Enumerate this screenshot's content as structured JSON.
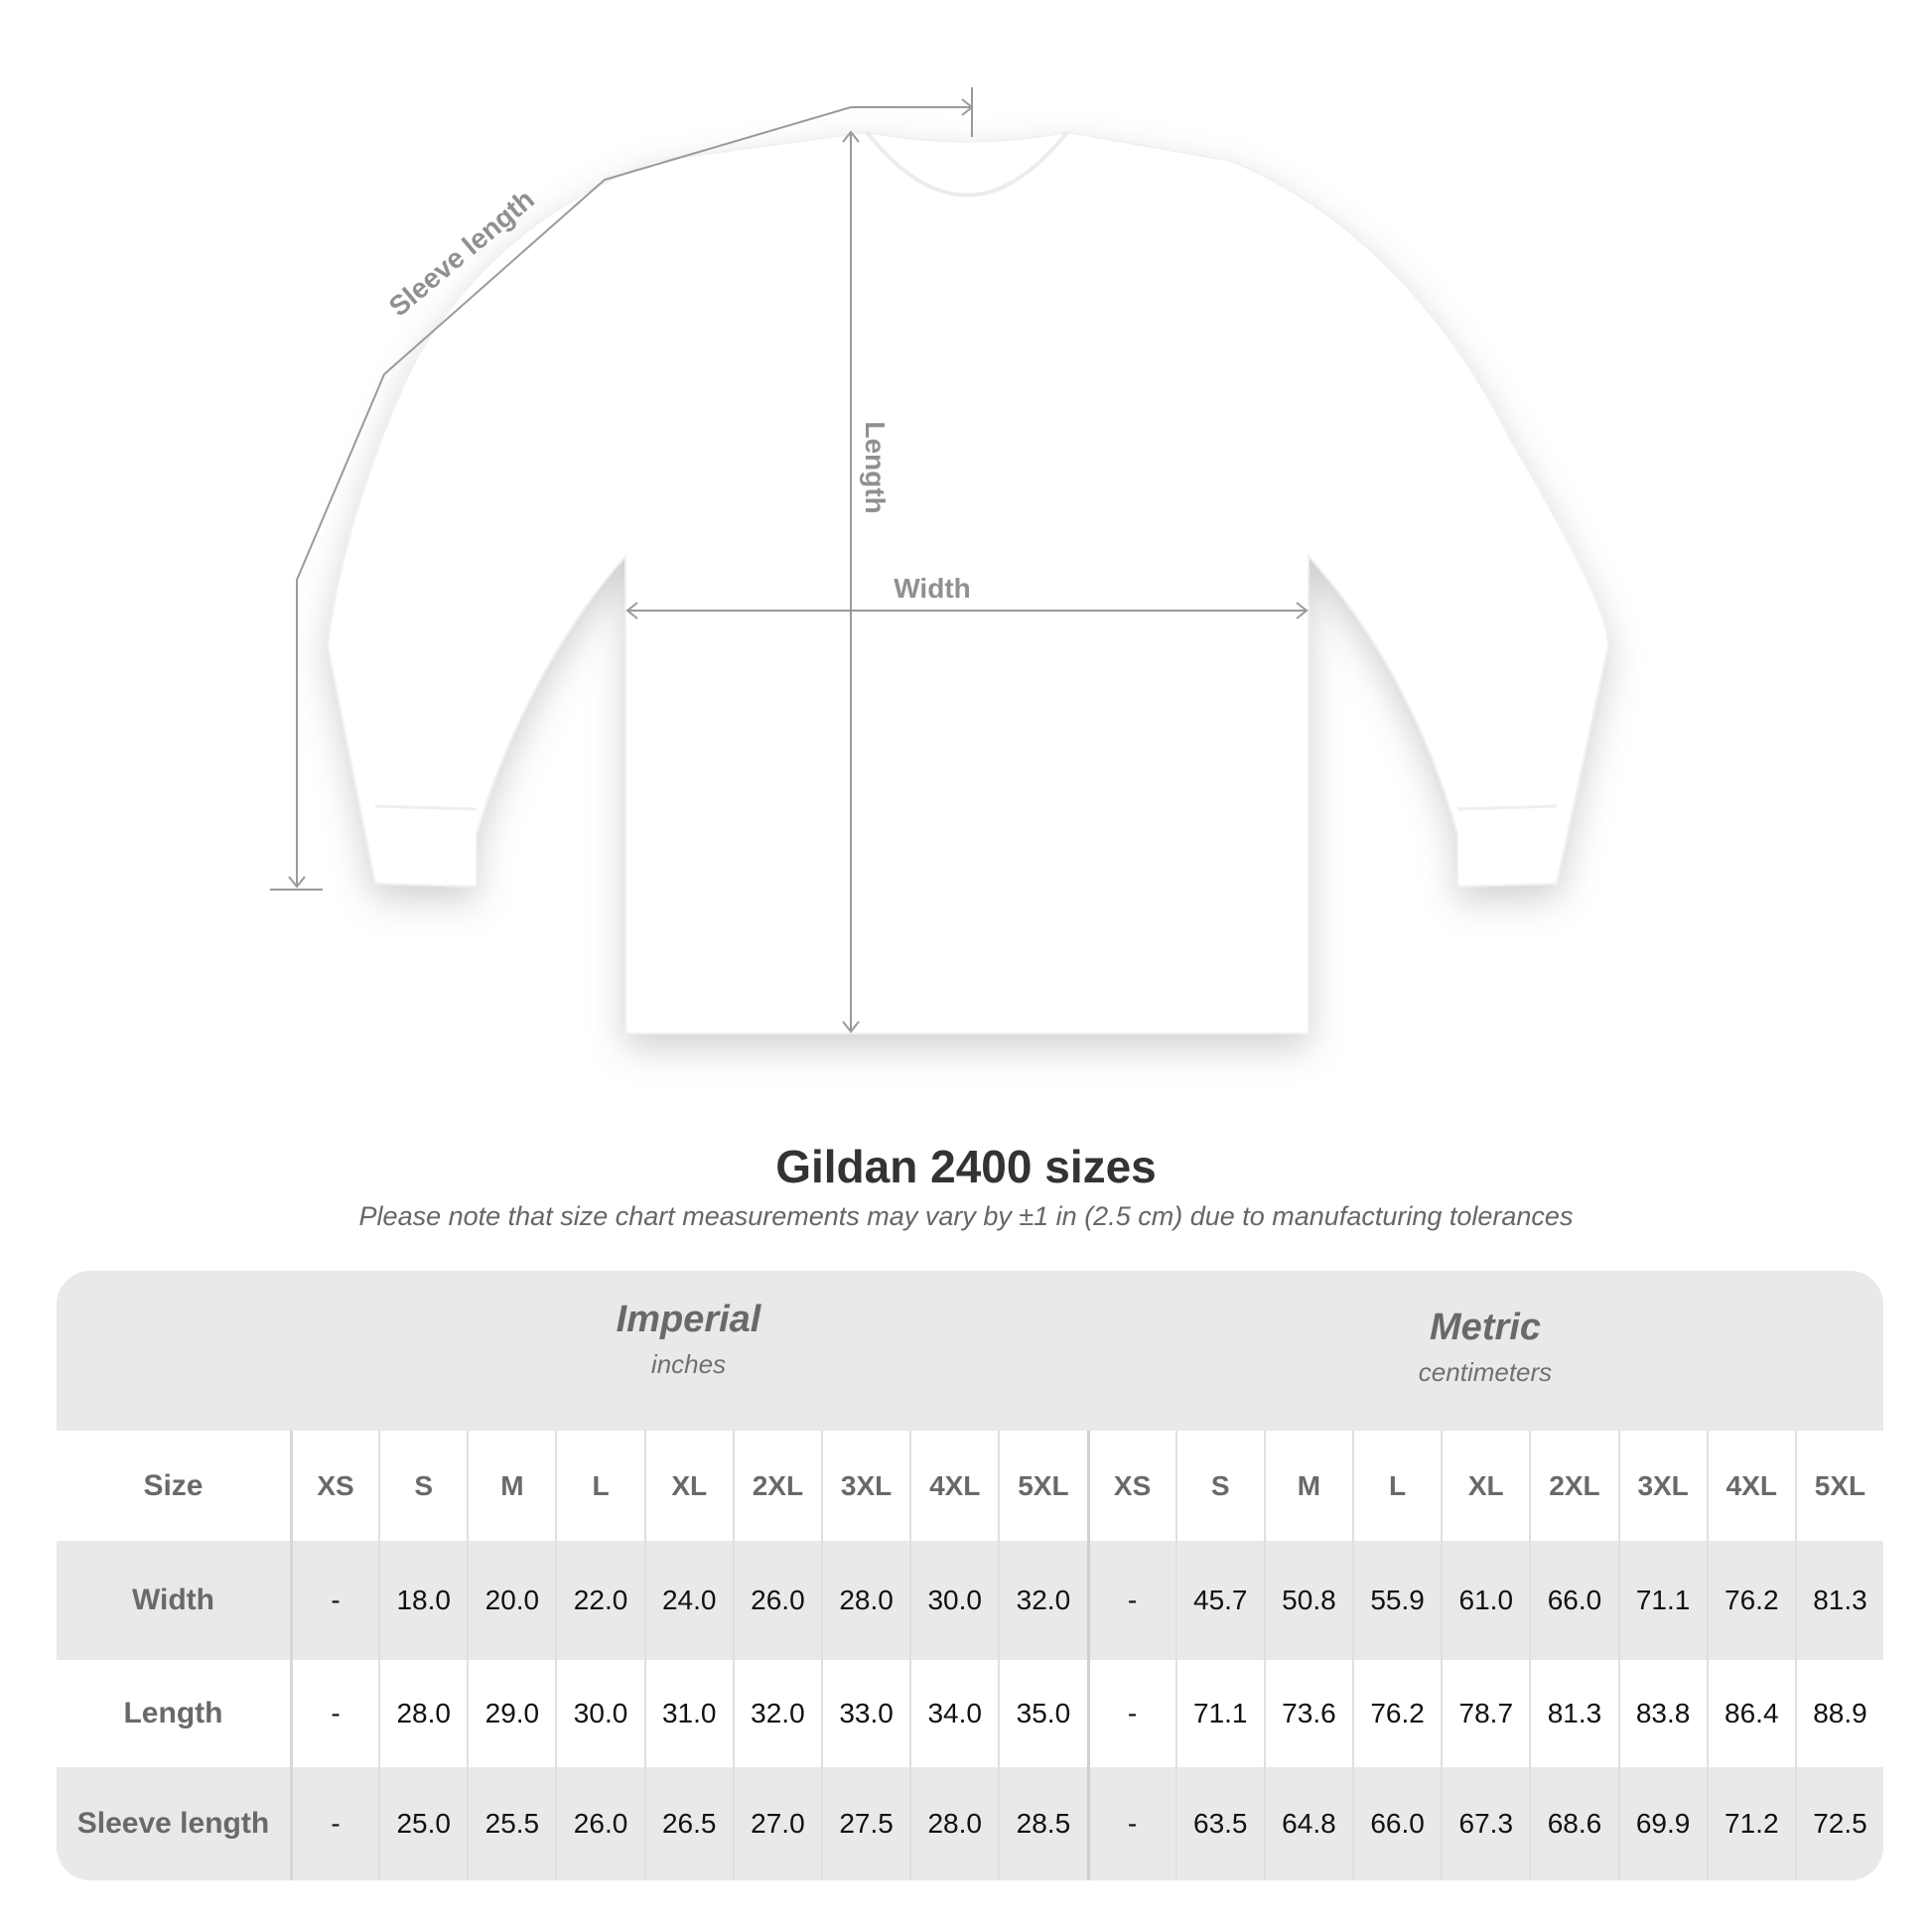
{
  "diagram": {
    "labels": {
      "sleeve": "Sleeve length",
      "length": "Length",
      "width": "Width"
    },
    "shirt_color": "#ffffff",
    "line_color": "#9a9a9a"
  },
  "title": "Gildan 2400 sizes",
  "note": "Please note that size chart measurements may vary by ±1 in (2.5 cm) due to manufacturing tolerances",
  "table": {
    "imperial": {
      "name": "Imperial",
      "unit": "inches"
    },
    "metric": {
      "name": "Metric",
      "unit": "centimeters"
    },
    "size_label": "Size",
    "sizes": [
      "XS",
      "S",
      "M",
      "L",
      "XL",
      "2XL",
      "3XL",
      "4XL",
      "5XL"
    ],
    "rows": [
      {
        "label": "Width",
        "imperial": [
          "-",
          "18.0",
          "20.0",
          "22.0",
          "24.0",
          "26.0",
          "28.0",
          "30.0",
          "32.0"
        ],
        "metric": [
          "-",
          "45.7",
          "50.8",
          "55.9",
          "61.0",
          "66.0",
          "71.1",
          "76.2",
          "81.3"
        ]
      },
      {
        "label": "Length",
        "imperial": [
          "-",
          "28.0",
          "29.0",
          "30.0",
          "31.0",
          "32.0",
          "33.0",
          "34.0",
          "35.0"
        ],
        "metric": [
          "-",
          "71.1",
          "73.6",
          "76.2",
          "78.7",
          "81.3",
          "83.8",
          "86.4",
          "88.9"
        ]
      },
      {
        "label": "Sleeve length",
        "imperial": [
          "-",
          "25.0",
          "25.5",
          "26.0",
          "26.5",
          "27.0",
          "27.5",
          "28.0",
          "28.5"
        ],
        "metric": [
          "-",
          "63.5",
          "64.8",
          "66.0",
          "67.3",
          "68.6",
          "69.9",
          "71.2",
          "72.5"
        ]
      }
    ]
  }
}
